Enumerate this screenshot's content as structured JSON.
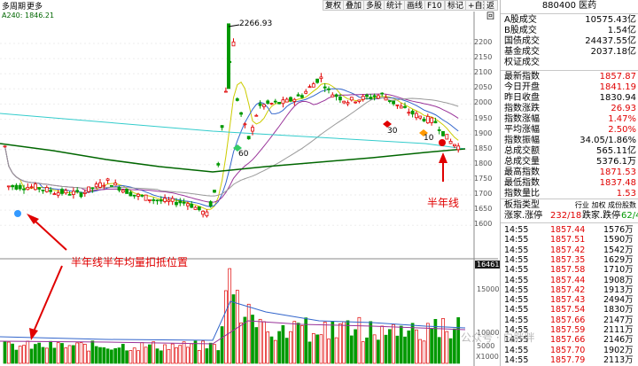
{
  "toolbar": {
    "left_menu": "多周期",
    "more": "更多",
    "buttons": [
      "复权",
      "叠加",
      "多股",
      "统计",
      "画线",
      "F10",
      "标记",
      "+自选",
      "返回"
    ],
    "ma_label": "A240: 1846.21"
  },
  "chart": {
    "price_axis": [
      "2200",
      "2150",
      "2100",
      "2050",
      "2000",
      "1950",
      "1900",
      "1850",
      "1800",
      "1750",
      "1700",
      "1650",
      "1600"
    ],
    "peak_label": "2266.93",
    "marker_60": "60",
    "marker_30": "30",
    "marker_10": "10",
    "annotation_main": "半年线半年均量扣抵位置",
    "annotation_right": "半年线",
    "volume_top_value": "16461",
    "volume_axis": [
      "15000",
      "10000",
      "5000"
    ],
    "volume_unit": "X1000"
  },
  "panel": {
    "header_code": "880400",
    "header_name": "医药",
    "rows_a": [
      {
        "label": "A股成交",
        "value": "10575.43亿",
        "color": "black"
      },
      {
        "label": "B股成交",
        "value": "1.54亿",
        "color": "black"
      },
      {
        "label": "国债成交",
        "value": "24437.55亿",
        "color": "black"
      },
      {
        "label": "基金成交",
        "value": "2037.18亿",
        "color": "black"
      },
      {
        "label": "权证成交",
        "value": "",
        "color": "black"
      }
    ],
    "rows_b": [
      {
        "label": "最新指数",
        "value": "1857.87",
        "color": "red"
      },
      {
        "label": "今日开盘",
        "value": "1841.19",
        "color": "red"
      },
      {
        "label": "昨日收盘",
        "value": "1830.94",
        "color": "black"
      },
      {
        "label": "指数涨跌",
        "value": "26.93",
        "color": "red"
      },
      {
        "label": "指数涨幅",
        "value": "1.47%",
        "color": "red"
      },
      {
        "label": "平均涨幅",
        "value": "2.50%",
        "color": "red"
      },
      {
        "label": "指数振幅",
        "value": "34.05/1.86%",
        "color": "black"
      },
      {
        "label": "总成交额",
        "value": "565.11亿",
        "color": "black"
      },
      {
        "label": "总成交量",
        "value": "5376.1万",
        "color": "black"
      },
      {
        "label": "最高指数",
        "value": "1871.53",
        "color": "red"
      },
      {
        "label": "最低指数",
        "value": "1837.48",
        "color": "red"
      },
      {
        "label": "指数量比",
        "value": "1.53",
        "color": "red"
      }
    ],
    "sector_label": "板指类型",
    "sector_tabs": "行业 加权 成份股数",
    "updown_label": "涨家.涨停",
    "updown_value": "232/18",
    "downcount_label": "跌家.跌停",
    "downcount_value": "62/4",
    "ticks": [
      {
        "time": "14:55",
        "price": "1857.44",
        "vol": "1576万"
      },
      {
        "time": "14:55",
        "price": "1857.51",
        "vol": "1590万"
      },
      {
        "time": "14:55",
        "price": "1857.42",
        "vol": "1542万"
      },
      {
        "time": "14:55",
        "price": "1857.35",
        "vol": "1629万"
      },
      {
        "time": "14:55",
        "price": "1857.58",
        "vol": "1710万"
      },
      {
        "time": "14:55",
        "price": "1857.44",
        "vol": "1908万"
      },
      {
        "time": "14:55",
        "price": "1857.42",
        "vol": "1913万"
      },
      {
        "time": "14:55",
        "price": "1857.43",
        "vol": "2494万"
      },
      {
        "time": "14:55",
        "price": "1857.54",
        "vol": "1830万"
      },
      {
        "time": "14:55",
        "price": "1857.66",
        "vol": "2147万"
      },
      {
        "time": "14:55",
        "price": "1857.59",
        "vol": "2111万"
      },
      {
        "time": "14:55",
        "price": "1857.66",
        "vol": "2146万"
      },
      {
        "time": "14:55",
        "price": "1857.70",
        "vol": "1902万"
      },
      {
        "time": "14:55",
        "price": "1857.79",
        "vol": "2113万"
      }
    ],
    "watermark": "公众号 · 白胖胖"
  },
  "colors": {
    "up": "#e00000",
    "down": "#009900",
    "ma_long": "#006600",
    "ma_cyan": "#33cccc",
    "ma_gray": "#999999",
    "ma_purple": "#993399",
    "annotation": "#e00000"
  }
}
